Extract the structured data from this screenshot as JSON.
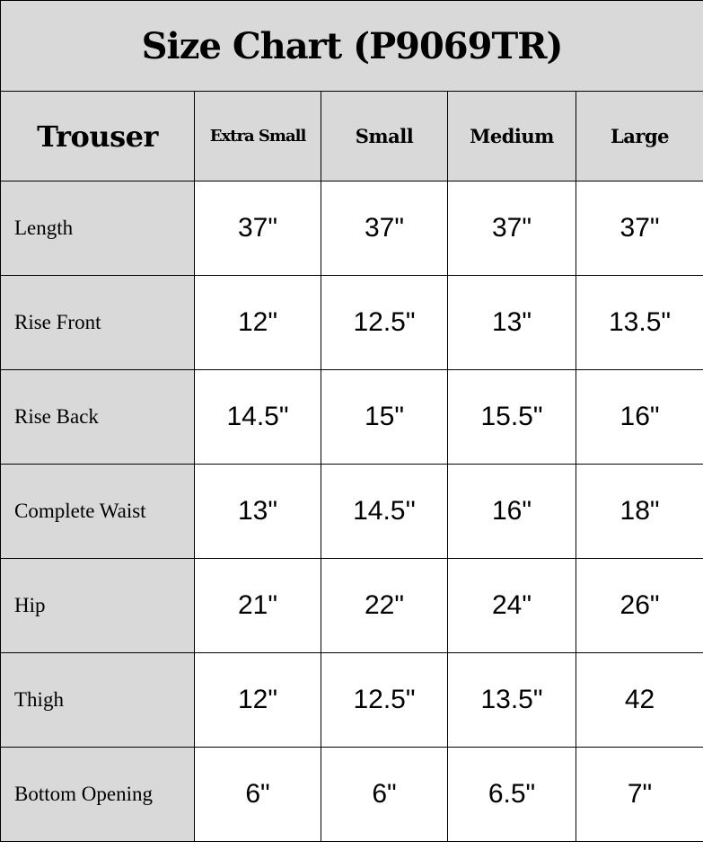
{
  "title": "Size Chart (P9069TR)",
  "header": {
    "category": "Trouser",
    "sizes": [
      "Extra Small",
      "Small",
      "Medium",
      "Large"
    ]
  },
  "rows": [
    {
      "label": "Length",
      "values": [
        "37\"",
        "37\"",
        "37\"",
        "37\""
      ]
    },
    {
      "label": "Rise Front",
      "values": [
        "12\"",
        "12.5\"",
        "13\"",
        "13.5\""
      ]
    },
    {
      "label": "Rise Back",
      "values": [
        "14.5\"",
        "15\"",
        "15.5\"",
        "16\""
      ]
    },
    {
      "label": "Complete Waist",
      "values": [
        "13\"",
        "14.5''",
        "16\"",
        "18\""
      ]
    },
    {
      "label": "Hip",
      "values": [
        "21\"",
        "22\"",
        "24\"",
        "26\""
      ]
    },
    {
      "label": "Thigh",
      "values": [
        "12\"",
        "12.5\"",
        "13.5\"",
        "42"
      ]
    },
    {
      "label": "Bottom Opening",
      "values": [
        "6\"",
        "6\"",
        "6.5\"",
        "7\""
      ]
    }
  ]
}
